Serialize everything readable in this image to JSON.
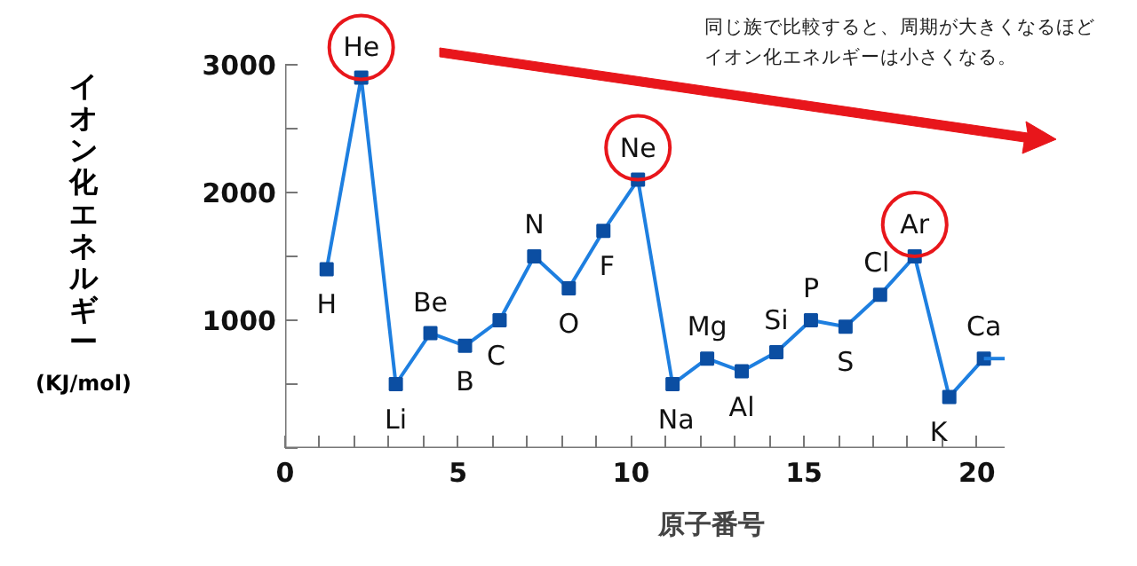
{
  "chart_data": {
    "type": "line",
    "xlabel": "原子番号",
    "ylabel": "イオン化エネルギー\n(KJ/mol)",
    "xlim": [
      0,
      20.8
    ],
    "ylim": [
      0,
      3000
    ],
    "xticks": [
      0,
      {
        "value": 1,
        "label": null
      },
      {
        "value": 2,
        "label": null
      },
      {
        "value": 3,
        "label": null
      },
      {
        "value": 4,
        "label": null
      },
      5,
      {
        "value": 6,
        "label": null
      },
      {
        "value": 7,
        "label": null
      },
      {
        "value": 8,
        "label": null
      },
      {
        "value": 9,
        "label": null
      },
      10,
      {
        "value": 11,
        "label": null
      },
      {
        "value": 12,
        "label": null
      },
      {
        "value": 13,
        "label": null
      },
      {
        "value": 14,
        "label": null
      },
      15,
      {
        "value": 16,
        "label": null
      },
      {
        "value": 17,
        "label": null
      },
      {
        "value": 18,
        "label": null
      },
      {
        "value": 19,
        "label": null
      },
      20
    ],
    "yticks": [
      {
        "value": 0,
        "label": null
      },
      {
        "value": 500,
        "label": null
      },
      1000,
      {
        "value": 1500,
        "label": null
      },
      2000,
      {
        "value": 2500,
        "label": null
      },
      3000
    ],
    "grid": false,
    "line_style": "solid",
    "series": [
      {
        "color": "#1e7fe0",
        "marker": "square",
        "x": [
          1.2,
          2.2,
          3.2,
          4.2,
          5.2,
          6.2,
          7.2,
          8.2,
          9.2,
          10.2,
          11.2,
          12.2,
          13.2,
          14.2,
          15.2,
          16.2,
          17.2,
          18.2,
          19.2,
          20.2
        ],
        "values": [
          1400,
          2900,
          500,
          900,
          800,
          1000,
          1500,
          1250,
          1700,
          2100,
          500,
          700,
          600,
          750,
          1000,
          950,
          1200,
          1500,
          400,
          700
        ]
      },
      {
        "color": "#1e7fe0",
        "marker": "none",
        "x": [
          20.2,
          20.8
        ],
        "values": [
          700,
          700
        ]
      }
    ],
    "annotations": [
      {
        "text": "H",
        "x": 1.2,
        "y": 1400
      },
      {
        "text": "He",
        "x": 2.2,
        "y": 2900
      },
      {
        "text": "Li",
        "x": 3.2,
        "y": 500
      },
      {
        "text": "Be",
        "x": 4.2,
        "y": 900
      },
      {
        "text": "B",
        "x": 5.2,
        "y": 800
      },
      {
        "text": "C",
        "x": 6.2,
        "y": 1000
      },
      {
        "text": "N",
        "x": 7.2,
        "y": 1500
      },
      {
        "text": "O",
        "x": 8.2,
        "y": 1250
      },
      {
        "text": "F",
        "x": 9.2,
        "y": 1700
      },
      {
        "text": "Ne",
        "x": 10.2,
        "y": 2100
      },
      {
        "text": "Na",
        "x": 11.2,
        "y": 500
      },
      {
        "text": "Mg",
        "x": 12.2,
        "y": 700
      },
      {
        "text": "Al",
        "x": 13.2,
        "y": 600
      },
      {
        "text": "Si",
        "x": 14.2,
        "y": 750
      },
      {
        "text": "P",
        "x": 15.2,
        "y": 1000
      },
      {
        "text": "S",
        "x": 16.2,
        "y": 950
      },
      {
        "text": "Cl",
        "x": 17.2,
        "y": 1200
      },
      {
        "text": "Ar",
        "x": 18.2,
        "y": 1500
      },
      {
        "text": "K",
        "x": 19.2,
        "y": 400
      },
      {
        "text": "Ca",
        "x": 20.2,
        "y": 700
      },
      "同じ族で比較すると、周期が大きくなるほど",
      "イオン化エネルギーは小さくなる。"
    ]
  }
}
